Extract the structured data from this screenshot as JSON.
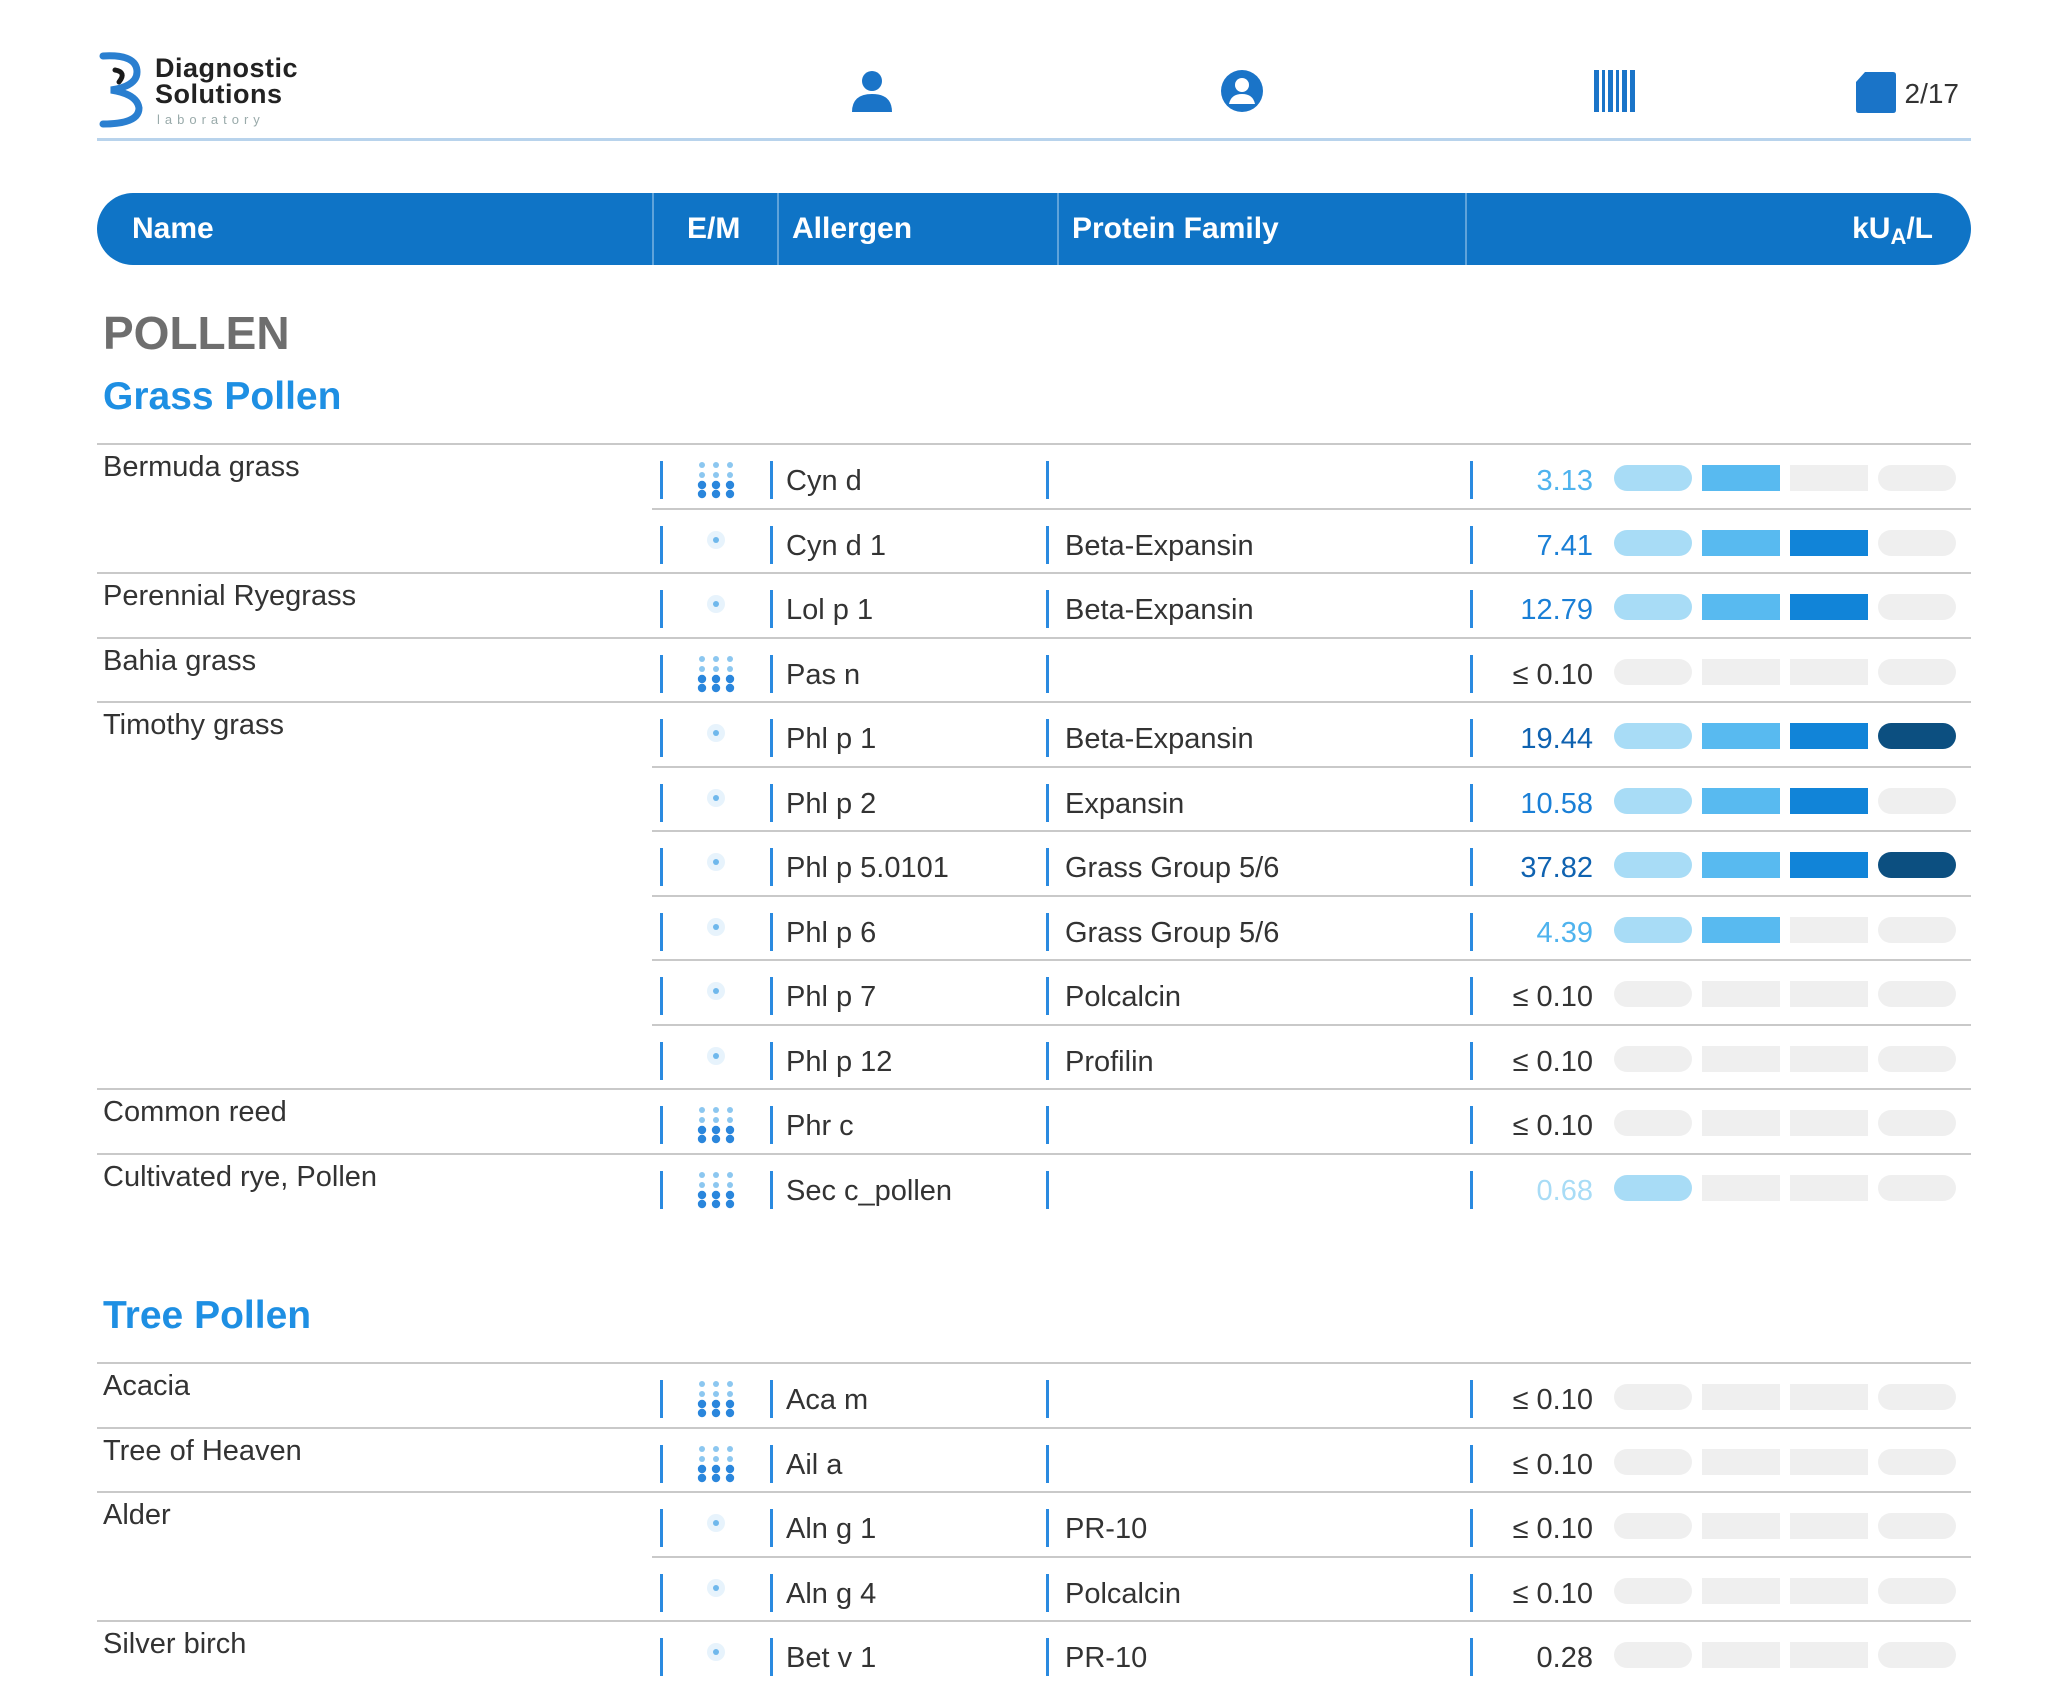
{
  "header": {
    "logo_line1": "Diagnostic",
    "logo_line2": "Solutions",
    "logo_line3": "laboratory",
    "page_count": "2/17"
  },
  "columns": {
    "name": "Name",
    "em": "E/M",
    "allergen": "Allergen",
    "protein_family": "Protein Family",
    "unit_main": "kU",
    "unit_sub": "A",
    "unit_tail": "/L"
  },
  "colors": {
    "level1": "#a8dcf6",
    "level2": "#58baf0",
    "level3": "#1184d8",
    "level4": "#0c4f80",
    "empty": "#efefef",
    "header_bar": "#0f74c6"
  },
  "section": "POLLEN",
  "groups": [
    {
      "title": "Grass Pollen",
      "rows": [
        {
          "name": "Bermuda grass",
          "em": "extract",
          "allergen": "Cyn d",
          "family": "",
          "value": "3.13",
          "level": 2,
          "first": true
        },
        {
          "name": "",
          "em": "molecule",
          "allergen": "Cyn d 1",
          "family": "Beta-Expansin",
          "value": "7.41",
          "level": 3,
          "first": false
        },
        {
          "name": "Perennial Ryegrass",
          "em": "molecule",
          "allergen": "Lol p 1",
          "family": "Beta-Expansin",
          "value": "12.79",
          "level": 3,
          "first": true
        },
        {
          "name": "Bahia grass",
          "em": "extract",
          "allergen": "Pas n",
          "family": "",
          "value": "≤ 0.10",
          "level": 0,
          "first": true
        },
        {
          "name": "Timothy grass",
          "em": "molecule",
          "allergen": "Phl p 1",
          "family": "Beta-Expansin",
          "value": "19.44",
          "level": 4,
          "first": true
        },
        {
          "name": "",
          "em": "molecule",
          "allergen": "Phl p 2",
          "family": "Expansin",
          "value": "10.58",
          "level": 3,
          "first": false
        },
        {
          "name": "",
          "em": "molecule",
          "allergen": "Phl p 5.0101",
          "family": "Grass Group 5/6",
          "value": "37.82",
          "level": 4,
          "first": false
        },
        {
          "name": "",
          "em": "molecule",
          "allergen": "Phl p 6",
          "family": "Grass Group 5/6",
          "value": "4.39",
          "level": 2,
          "first": false
        },
        {
          "name": "",
          "em": "molecule",
          "allergen": "Phl p 7",
          "family": "Polcalcin",
          "value": "≤ 0.10",
          "level": 0,
          "first": false
        },
        {
          "name": "",
          "em": "molecule",
          "allergen": "Phl p 12",
          "family": "Profilin",
          "value": "≤ 0.10",
          "level": 0,
          "first": false
        },
        {
          "name": "Common reed",
          "em": "extract",
          "allergen": "Phr c",
          "family": "",
          "value": "≤ 0.10",
          "level": 0,
          "first": true
        },
        {
          "name": "Cultivated rye, Pollen",
          "em": "extract",
          "allergen": "Sec c_pollen",
          "family": "",
          "value": "0.68",
          "level": 1,
          "first": true
        }
      ]
    },
    {
      "title": "Tree Pollen",
      "rows": [
        {
          "name": "Acacia",
          "em": "extract",
          "allergen": "Aca m",
          "family": "",
          "value": "≤ 0.10",
          "level": 0,
          "first": true
        },
        {
          "name": "Tree of Heaven",
          "em": "extract",
          "allergen": "Ail a",
          "family": "",
          "value": "≤ 0.10",
          "level": 0,
          "first": true
        },
        {
          "name": "Alder",
          "em": "molecule",
          "allergen": "Aln g 1",
          "family": "PR-10",
          "value": "≤ 0.10",
          "level": 0,
          "first": true
        },
        {
          "name": "",
          "em": "molecule",
          "allergen": "Aln g 4",
          "family": "Polcalcin",
          "value": "≤ 0.10",
          "level": 0,
          "first": false
        },
        {
          "name": "Silver birch",
          "em": "molecule",
          "allergen": "Bet v 1",
          "family": "PR-10",
          "value": "0.28",
          "level": 0,
          "first": true
        }
      ]
    }
  ]
}
